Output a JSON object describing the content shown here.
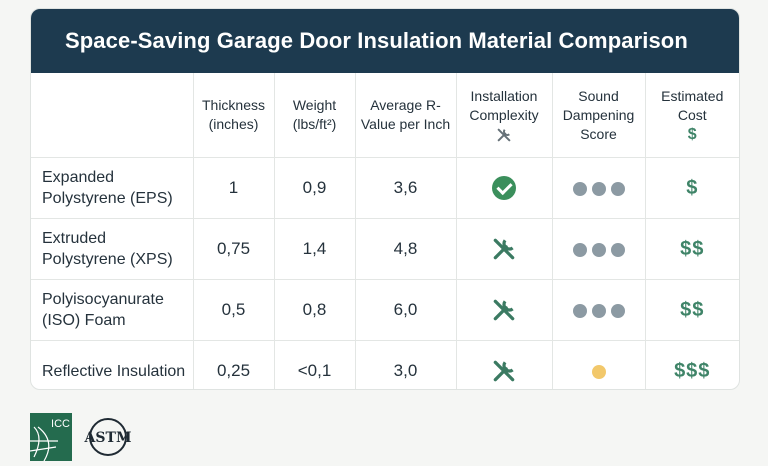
{
  "title": "Space-Saving Garage Door Insulation Material Comparison",
  "headers": {
    "material": "",
    "thickness": "Thickness (inches)",
    "weight": "Weight (lbs/ft²)",
    "rvalue": "Average R-Value per Inch",
    "installation": "Installation Complexity",
    "sound": "Sound Dampening Score",
    "cost": "Estimated Cost",
    "cost_icon": "$"
  },
  "rows": [
    {
      "material": "Expanded Polystyrene (EPS)",
      "thickness": "1",
      "weight": "0,9",
      "rvalue": "3,6",
      "installation_icon": "check-circle-icon",
      "sound_score": 3,
      "cost": "$"
    },
    {
      "material": "Extruded Polystyrene (XPS)",
      "thickness": "0,75",
      "weight": "1,4",
      "rvalue": "4,8",
      "installation_icon": "tools-icon",
      "sound_score": 3,
      "cost": "$$"
    },
    {
      "material": "Polyisocyanurate (ISO) Foam",
      "thickness": "0,5",
      "weight": "0,8",
      "rvalue": "6,0",
      "installation_icon": "tools-icon",
      "sound_score": 3,
      "cost": "$$"
    },
    {
      "material": "Reflective Insulation",
      "thickness": "0,25",
      "weight": "<0,1",
      "rvalue": "3,0",
      "installation_icon": "tools-icon",
      "sound_score": 1,
      "cost": "$$$"
    }
  ],
  "logos": {
    "icc": "ICC",
    "astm": "ASTM INTERNATIONAL"
  },
  "colors": {
    "header_bg": "#1d3a4f",
    "accent_green": "#3f8468",
    "dot_gray": "#8c9aa3",
    "dot_yellow": "#f2c86b"
  }
}
